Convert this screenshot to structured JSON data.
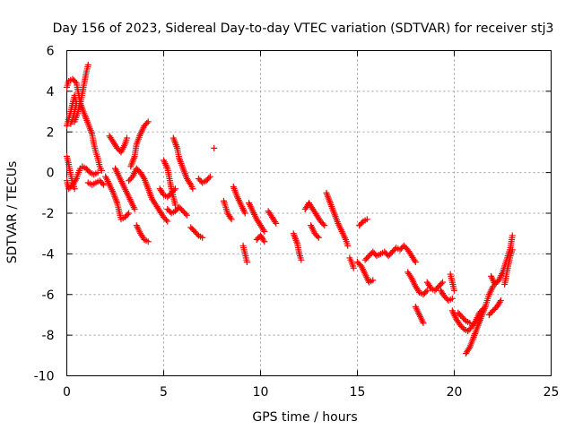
{
  "chart_data": {
    "type": "scatter",
    "title": "Day 156 of 2023, Sidereal Day-to-day VTEC variation (SDTVAR) for receiver stj3",
    "xlabel": "GPS time / hours",
    "ylabel": "SDTVAR / TECUs",
    "xlim": [
      0,
      25
    ],
    "ylim": [
      -10,
      6
    ],
    "x_ticks": [
      "0",
      "5",
      "10",
      "15",
      "20",
      "25"
    ],
    "y_ticks": [
      "-10",
      "-8",
      "-6",
      "-4",
      "-2",
      "0",
      "2",
      "4",
      "6"
    ],
    "grid": true,
    "marker": "+",
    "color": "#ff0000",
    "segments": [
      [
        [
          0.0,
          2.3
        ],
        [
          0.2,
          3.0
        ],
        [
          0.4,
          3.8
        ],
        [
          0.5,
          3.4
        ],
        [
          0.3,
          2.6
        ],
        [
          0.2,
          2.4
        ]
      ],
      [
        [
          0.0,
          4.2
        ],
        [
          0.1,
          4.5
        ],
        [
          0.3,
          4.6
        ],
        [
          0.5,
          4.4
        ],
        [
          0.6,
          3.9
        ],
        [
          0.7,
          3.4
        ],
        [
          0.9,
          2.9
        ],
        [
          1.1,
          2.4
        ],
        [
          1.3,
          1.9
        ],
        [
          1.4,
          1.4
        ],
        [
          1.5,
          1.0
        ],
        [
          1.6,
          0.7
        ],
        [
          1.7,
          0.3
        ],
        [
          1.8,
          0.1
        ]
      ],
      [
        [
          0.0,
          -0.4
        ],
        [
          0.1,
          -0.8
        ],
        [
          0.3,
          -0.6
        ],
        [
          0.5,
          -0.3
        ],
        [
          0.6,
          0.0
        ],
        [
          0.7,
          0.2
        ],
        [
          0.8,
          0.3
        ],
        [
          1.0,
          0.2
        ],
        [
          1.2,
          0.0
        ],
        [
          1.4,
          -0.1
        ],
        [
          1.6,
          0.0
        ]
      ],
      [
        [
          0.0,
          0.8
        ],
        [
          0.1,
          0.4
        ],
        [
          0.2,
          -0.1
        ],
        [
          0.3,
          -0.5
        ],
        [
          0.4,
          -0.8
        ]
      ],
      [
        [
          0.4,
          2.5
        ],
        [
          0.55,
          2.9
        ],
        [
          0.7,
          3.4
        ],
        [
          0.8,
          3.9
        ],
        [
          0.9,
          4.4
        ],
        [
          1.0,
          4.9
        ],
        [
          1.1,
          5.3
        ]
      ],
      [
        [
          1.1,
          -0.5
        ],
        [
          1.3,
          -0.6
        ],
        [
          1.5,
          -0.5
        ],
        [
          1.7,
          -0.4
        ],
        [
          1.9,
          -0.6
        ]
      ],
      [
        [
          2.0,
          -0.2
        ],
        [
          2.2,
          -0.6
        ],
        [
          2.4,
          -1.0
        ],
        [
          2.6,
          -1.5
        ],
        [
          2.7,
          -1.9
        ],
        [
          2.8,
          -2.3
        ],
        [
          3.0,
          -2.2
        ],
        [
          3.2,
          -2.0
        ]
      ],
      [
        [
          2.2,
          1.8
        ],
        [
          2.4,
          1.5
        ],
        [
          2.6,
          1.2
        ],
        [
          2.8,
          1.0
        ],
        [
          3.0,
          1.4
        ],
        [
          3.1,
          1.7
        ]
      ],
      [
        [
          2.5,
          0.2
        ],
        [
          2.7,
          -0.2
        ],
        [
          2.9,
          -0.6
        ],
        [
          3.1,
          -1.0
        ],
        [
          3.3,
          -1.4
        ],
        [
          3.5,
          -1.8
        ]
      ],
      [
        [
          3.3,
          0.3
        ],
        [
          3.5,
          0.8
        ],
        [
          3.6,
          1.4
        ],
        [
          3.8,
          1.9
        ],
        [
          4.0,
          2.3
        ],
        [
          4.2,
          2.5
        ]
      ],
      [
        [
          3.2,
          -0.4
        ],
        [
          3.4,
          -0.2
        ],
        [
          3.6,
          0.2
        ],
        [
          3.8,
          0.0
        ],
        [
          4.0,
          -0.3
        ],
        [
          4.2,
          -0.8
        ],
        [
          4.4,
          -1.3
        ],
        [
          4.6,
          -1.6
        ],
        [
          4.8,
          -1.9
        ],
        [
          5.0,
          -2.2
        ],
        [
          5.2,
          -2.4
        ]
      ],
      [
        [
          3.6,
          -2.6
        ],
        [
          3.8,
          -3.0
        ],
        [
          4.0,
          -3.3
        ],
        [
          4.2,
          -3.4
        ]
      ],
      [
        [
          4.8,
          -0.8
        ],
        [
          5.0,
          -1.1
        ],
        [
          5.2,
          -1.2
        ],
        [
          5.4,
          -1.0
        ],
        [
          5.6,
          -0.8
        ]
      ],
      [
        [
          5.0,
          0.6
        ],
        [
          5.2,
          0.2
        ],
        [
          5.3,
          -0.3
        ],
        [
          5.4,
          -0.8
        ],
        [
          5.5,
          -1.2
        ],
        [
          5.6,
          -1.6
        ]
      ],
      [
        [
          5.2,
          -1.8
        ],
        [
          5.4,
          -2.0
        ],
        [
          5.6,
          -1.9
        ],
        [
          5.8,
          -1.7
        ],
        [
          6.0,
          -1.9
        ],
        [
          6.2,
          -2.1
        ]
      ],
      [
        [
          5.5,
          1.7
        ],
        [
          5.7,
          1.2
        ],
        [
          5.8,
          0.7
        ],
        [
          6.0,
          0.2
        ],
        [
          6.2,
          -0.3
        ],
        [
          6.4,
          -0.6
        ],
        [
          6.5,
          -0.8
        ]
      ],
      [
        [
          6.4,
          -2.7
        ],
        [
          6.6,
          -2.9
        ],
        [
          6.8,
          -3.1
        ],
        [
          7.0,
          -3.2
        ]
      ],
      [
        [
          6.8,
          -0.3
        ],
        [
          7.0,
          -0.5
        ],
        [
          7.2,
          -0.4
        ],
        [
          7.4,
          -0.2
        ]
      ],
      [
        [
          7.6,
          1.2
        ]
      ],
      [
        [
          8.1,
          -1.4
        ],
        [
          8.3,
          -2.0
        ],
        [
          8.5,
          -2.3
        ]
      ],
      [
        [
          8.6,
          -0.7
        ],
        [
          8.8,
          -1.2
        ],
        [
          9.0,
          -1.6
        ],
        [
          9.2,
          -2.0
        ]
      ],
      [
        [
          9.1,
          -3.6
        ],
        [
          9.2,
          -4.0
        ],
        [
          9.3,
          -4.4
        ]
      ],
      [
        [
          9.4,
          -1.5
        ],
        [
          9.6,
          -1.9
        ],
        [
          9.8,
          -2.3
        ],
        [
          10.0,
          -2.6
        ],
        [
          10.2,
          -2.9
        ]
      ],
      [
        [
          9.8,
          -3.3
        ],
        [
          10.0,
          -3.1
        ],
        [
          10.2,
          -3.4
        ]
      ],
      [
        [
          10.4,
          -1.9
        ],
        [
          10.6,
          -2.2
        ],
        [
          10.8,
          -2.5
        ]
      ],
      [
        [
          11.7,
          -3.0
        ],
        [
          11.9,
          -3.5
        ],
        [
          12.0,
          -4.0
        ],
        [
          12.1,
          -4.3
        ]
      ],
      [
        [
          12.3,
          -1.8
        ],
        [
          12.5,
          -1.5
        ],
        [
          12.7,
          -1.8
        ],
        [
          12.9,
          -2.1
        ],
        [
          13.1,
          -2.4
        ],
        [
          13.3,
          -2.6
        ]
      ],
      [
        [
          12.6,
          -2.6
        ],
        [
          12.8,
          -3.0
        ],
        [
          13.0,
          -3.2
        ]
      ],
      [
        [
          13.4,
          -1.0
        ],
        [
          13.6,
          -1.5
        ],
        [
          13.8,
          -2.0
        ],
        [
          14.0,
          -2.5
        ],
        [
          14.2,
          -2.9
        ],
        [
          14.4,
          -3.3
        ],
        [
          14.5,
          -3.6
        ]
      ],
      [
        [
          14.6,
          -4.2
        ],
        [
          14.7,
          -4.4
        ],
        [
          14.8,
          -4.7
        ]
      ],
      [
        [
          15.1,
          -2.6
        ],
        [
          15.3,
          -2.4
        ],
        [
          15.5,
          -2.3
        ]
      ],
      [
        [
          15.0,
          -4.4
        ],
        [
          15.2,
          -4.6
        ],
        [
          15.4,
          -5.0
        ],
        [
          15.6,
          -5.4
        ],
        [
          15.8,
          -5.3
        ]
      ],
      [
        [
          15.4,
          -4.3
        ],
        [
          15.6,
          -4.1
        ],
        [
          15.8,
          -3.9
        ],
        [
          16.0,
          -4.1
        ],
        [
          16.2,
          -4.0
        ],
        [
          16.4,
          -3.9
        ],
        [
          16.6,
          -4.1
        ],
        [
          16.8,
          -3.9
        ],
        [
          17.0,
          -3.7
        ],
        [
          17.2,
          -3.8
        ],
        [
          17.4,
          -3.6
        ],
        [
          17.6,
          -3.8
        ],
        [
          17.8,
          -4.1
        ],
        [
          18.0,
          -4.4
        ]
      ],
      [
        [
          17.6,
          -4.9
        ],
        [
          17.8,
          -5.2
        ],
        [
          18.0,
          -5.6
        ],
        [
          18.2,
          -5.9
        ],
        [
          18.4,
          -6.0
        ],
        [
          18.6,
          -5.8
        ]
      ],
      [
        [
          18.6,
          -5.4
        ],
        [
          18.8,
          -5.7
        ],
        [
          19.0,
          -5.8
        ],
        [
          19.2,
          -5.6
        ],
        [
          19.4,
          -5.4
        ]
      ],
      [
        [
          18.0,
          -6.6
        ],
        [
          18.2,
          -7.0
        ],
        [
          18.4,
          -7.4
        ]
      ],
      [
        [
          19.3,
          -5.8
        ],
        [
          19.5,
          -6.1
        ],
        [
          19.7,
          -6.3
        ],
        [
          19.9,
          -6.2
        ]
      ],
      [
        [
          19.8,
          -5.0
        ],
        [
          19.9,
          -5.4
        ],
        [
          20.0,
          -5.8
        ]
      ],
      [
        [
          19.9,
          -6.8
        ],
        [
          20.1,
          -7.2
        ],
        [
          20.3,
          -7.5
        ],
        [
          20.5,
          -7.7
        ],
        [
          20.7,
          -7.8
        ],
        [
          20.9,
          -7.6
        ],
        [
          21.1,
          -7.3
        ],
        [
          21.3,
          -6.9
        ],
        [
          21.5,
          -6.7
        ]
      ],
      [
        [
          20.2,
          -6.9
        ],
        [
          20.4,
          -7.1
        ],
        [
          20.6,
          -7.3
        ],
        [
          20.8,
          -7.4
        ]
      ],
      [
        [
          20.6,
          -8.9
        ],
        [
          20.8,
          -8.6
        ],
        [
          21.0,
          -8.1
        ],
        [
          21.2,
          -7.6
        ],
        [
          21.4,
          -7.1
        ],
        [
          21.6,
          -6.6
        ],
        [
          21.8,
          -6.0
        ],
        [
          22.0,
          -5.6
        ]
      ],
      [
        [
          21.9,
          -5.1
        ],
        [
          22.1,
          -5.5
        ],
        [
          22.3,
          -5.3
        ],
        [
          22.5,
          -4.9
        ],
        [
          22.7,
          -4.3
        ],
        [
          22.9,
          -3.7
        ],
        [
          23.0,
          -3.1
        ]
      ],
      [
        [
          21.8,
          -7.0
        ],
        [
          22.0,
          -6.8
        ],
        [
          22.2,
          -6.6
        ],
        [
          22.4,
          -6.3
        ]
      ],
      [
        [
          22.6,
          -5.5
        ],
        [
          22.7,
          -5.0
        ],
        [
          22.8,
          -4.5
        ],
        [
          22.9,
          -4.1
        ],
        [
          23.0,
          -3.8
        ]
      ]
    ]
  }
}
